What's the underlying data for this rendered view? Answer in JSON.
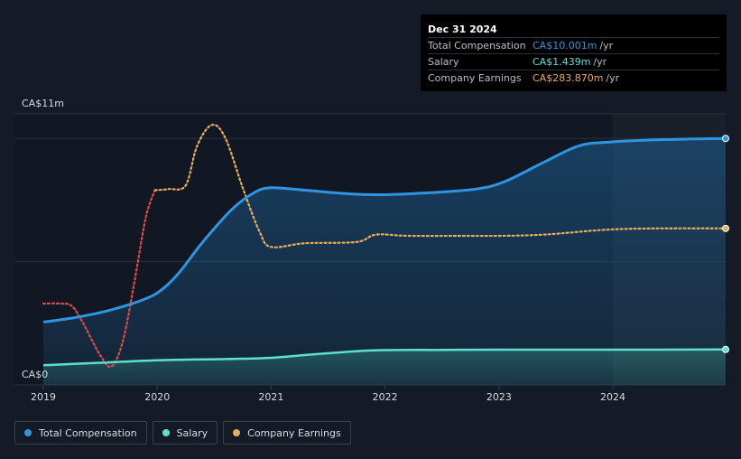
{
  "chart_data": {
    "type": "line",
    "y_axis": {
      "max_label": "CA$11m",
      "min_label": "CA$0",
      "ylim": [
        0,
        11
      ]
    },
    "x_ticks": [
      "2019",
      "2020",
      "2021",
      "2022",
      "2023",
      "2024"
    ],
    "xlim": [
      2019.0,
      2024.99
    ],
    "series": [
      {
        "name": "Total Compensation",
        "color": "#2d95e2",
        "points": [
          [
            2019.0,
            2.55
          ],
          [
            2019.3,
            2.75
          ],
          [
            2019.6,
            3.05
          ],
          [
            2019.9,
            3.5
          ],
          [
            2020.05,
            3.9
          ],
          [
            2020.2,
            4.6
          ],
          [
            2020.4,
            5.8
          ],
          [
            2020.65,
            7.1
          ],
          [
            2020.85,
            7.8
          ],
          [
            2021.0,
            8.0
          ],
          [
            2021.3,
            7.9
          ],
          [
            2021.7,
            7.75
          ],
          [
            2022.0,
            7.72
          ],
          [
            2022.4,
            7.8
          ],
          [
            2022.8,
            7.95
          ],
          [
            2023.05,
            8.25
          ],
          [
            2023.4,
            9.05
          ],
          [
            2023.7,
            9.7
          ],
          [
            2023.95,
            9.85
          ],
          [
            2024.4,
            9.95
          ],
          [
            2024.99,
            10.001
          ]
        ]
      },
      {
        "name": "Salary",
        "color": "#5ee0cf",
        "points": [
          [
            2019.0,
            0.8
          ],
          [
            2019.5,
            0.9
          ],
          [
            2020.0,
            1.0
          ],
          [
            2020.6,
            1.05
          ],
          [
            2021.0,
            1.1
          ],
          [
            2021.4,
            1.25
          ],
          [
            2021.9,
            1.4
          ],
          [
            2022.5,
            1.42
          ],
          [
            2023.0,
            1.43
          ],
          [
            2023.95,
            1.43
          ],
          [
            2024.99,
            1.439
          ]
        ]
      },
      {
        "name": "Company Earnings",
        "color": "#e8ad5c",
        "points": [
          [
            2019.0,
            3.3
          ],
          [
            2019.15,
            3.3
          ],
          [
            2019.25,
            3.2
          ],
          [
            2019.35,
            2.5
          ],
          [
            2019.5,
            1.2
          ],
          [
            2019.6,
            0.75
          ],
          [
            2019.7,
            1.8
          ],
          [
            2019.8,
            4.2
          ],
          [
            2019.9,
            6.8
          ],
          [
            2019.98,
            7.9
          ],
          [
            2020.1,
            7.95
          ],
          [
            2020.25,
            8.1
          ],
          [
            2020.35,
            9.7
          ],
          [
            2020.48,
            10.55
          ],
          [
            2020.6,
            10.0
          ],
          [
            2020.75,
            8.0
          ],
          [
            2020.9,
            6.2
          ],
          [
            2021.0,
            5.6
          ],
          [
            2021.3,
            5.75
          ],
          [
            2021.75,
            5.8
          ],
          [
            2021.92,
            6.1
          ],
          [
            2022.2,
            6.05
          ],
          [
            2022.7,
            6.05
          ],
          [
            2023.0,
            6.05
          ],
          [
            2023.4,
            6.1
          ],
          [
            2023.95,
            6.3
          ],
          [
            2024.4,
            6.35
          ],
          [
            2024.99,
            6.35
          ]
        ]
      }
    ],
    "tooltip": {
      "date": "Dec 31 2024",
      "rows": [
        {
          "label": "Total Compensation",
          "value": "CA$10.001m",
          "unit": "/yr",
          "color": "#2d95e2"
        },
        {
          "label": "Salary",
          "value": "CA$1.439m",
          "unit": "/yr",
          "color": "#5ee0cf"
        },
        {
          "label": "Company Earnings",
          "value": "CA$283.870m",
          "unit": "/yr",
          "color": "#e8ad5c"
        }
      ]
    },
    "legend": [
      {
        "label": "Total Compensation",
        "color": "#2d95e2"
      },
      {
        "label": "Salary",
        "color": "#5ee0cf"
      },
      {
        "label": "Company Earnings",
        "color": "#e8ad5c"
      }
    ],
    "gridlines": true,
    "legend_placement": "bottom-left"
  }
}
